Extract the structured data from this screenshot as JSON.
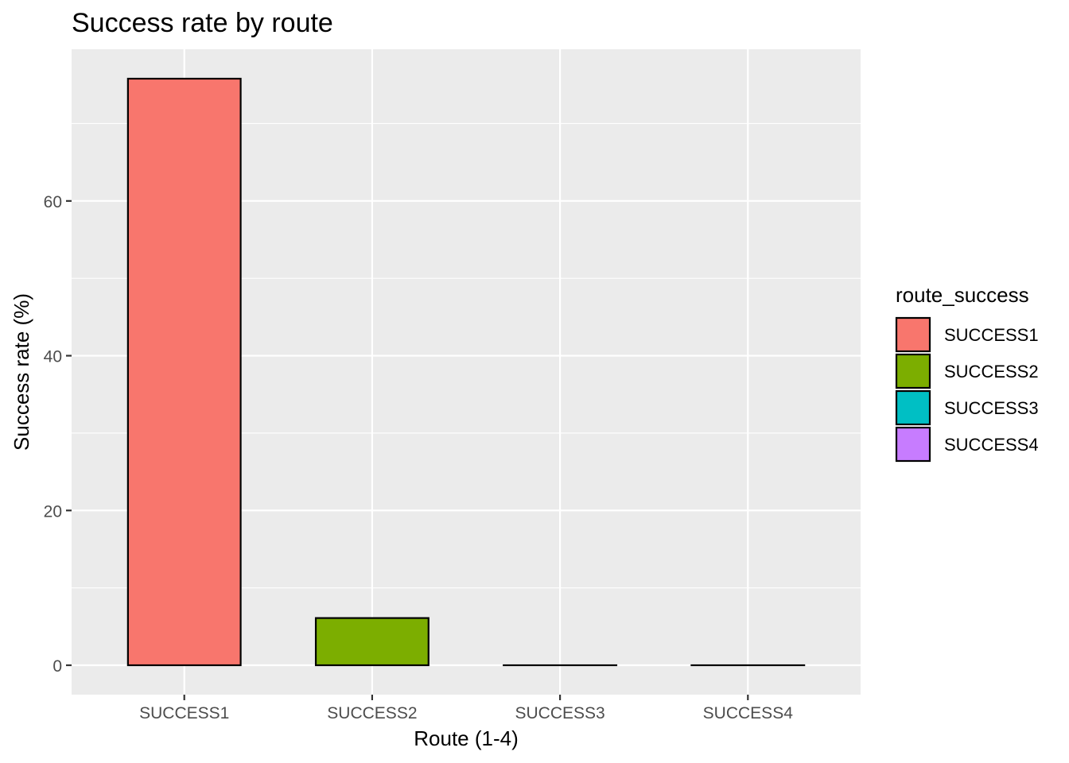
{
  "chart_data": {
    "type": "bar",
    "title": "Success rate by route",
    "xlabel": "Route (1-4)",
    "ylabel": "Success rate (%)",
    "categories": [
      "SUCCESS1",
      "SUCCESS2",
      "SUCCESS3",
      "SUCCESS4"
    ],
    "values": [
      75.8,
      6.1,
      0,
      0
    ],
    "colors": [
      "#F8766D",
      "#7CAE00",
      "#00BFC4",
      "#C77CFF"
    ],
    "ylim": [
      -3.8,
      79.6
    ],
    "yticks": [
      0,
      20,
      40,
      60
    ],
    "grid": true,
    "legend": {
      "title": "route_success",
      "position": "right",
      "entries": [
        "SUCCESS1",
        "SUCCESS2",
        "SUCCESS3",
        "SUCCESS4"
      ]
    }
  }
}
